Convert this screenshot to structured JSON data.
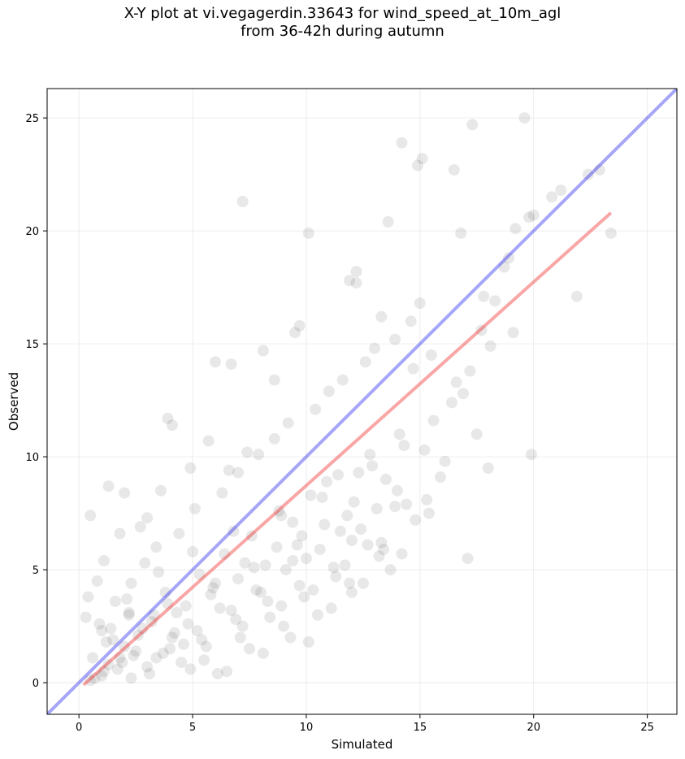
{
  "chart_data": {
    "type": "scatter",
    "title_lines": [
      "X-Y plot at vi.vegagerdin.33643 for wind_speed_at_10m_agl",
      "from 36-42h during autumn"
    ],
    "xlabel": "Simulated",
    "ylabel": "Observed",
    "xlim": [
      -1.4,
      26.3
    ],
    "ylim": [
      -1.4,
      26.3
    ],
    "xticks": [
      0,
      5,
      10,
      15,
      20,
      25
    ],
    "yticks": [
      0,
      5,
      10,
      15,
      20,
      25
    ],
    "grid": true,
    "point_color": "#000000",
    "point_alpha": 0.09,
    "series": [
      {
        "type": "line",
        "color": "#0000ee",
        "x": [
          -1.4,
          26.3
        ],
        "y": [
          -1.4,
          26.3
        ]
      },
      {
        "type": "line",
        "color": "#ee0000",
        "x": [
          0.2,
          23.4
        ],
        "y": [
          -0.1,
          20.8
        ]
      }
    ],
    "points": {
      "x": [
        19.6,
        17.3,
        14.2,
        15.1,
        14.9,
        16.5,
        7.2,
        22.9,
        23.4,
        21.9,
        20.0,
        19.9,
        10.1,
        12.2,
        13.3,
        11.9,
        17.1,
        20.8,
        19.2,
        18.7,
        16.8,
        13.6,
        9.5,
        9.7,
        6.0,
        6.7,
        3.9,
        4.1,
        1.3,
        0.5,
        2.0,
        1.8,
        3.6,
        8.6,
        8.1,
        15.3,
        15.9,
        12.2,
        18.0,
        17.5,
        11.9,
        10.1,
        13.9,
        13.4,
        12.0,
        9.4,
        16.6,
        17.8,
        15.5,
        18.3,
        19.1,
        14.7,
        4.9,
        5.7,
        7.4,
        6.6,
        3.0,
        2.7,
        1.1,
        0.8,
        0.4,
        0.3,
        1.6,
        2.3,
        2.9,
        3.4,
        4.4,
        5.1,
        6.3,
        7.0,
        7.9,
        8.6,
        9.2,
        10.4,
        11.0,
        11.6,
        12.6,
        13.0,
        13.9,
        14.6,
        15.0,
        0.6,
        1.0,
        1.4,
        1.9,
        2.2,
        2.5,
        3.2,
        3.8,
        4.2,
        4.7,
        5.3,
        5.8,
        6.4,
        7.0,
        7.6,
        8.2,
        8.9,
        9.6,
        10.2,
        10.8,
        11.4,
        12.1,
        12.8,
        13.5,
        14.1,
        1.2,
        1.7,
        2.4,
        3.1,
        4.0,
        4.8,
        5.5,
        6.2,
        7.1,
        7.8,
        8.4,
        9.1,
        9.9,
        10.6,
        11.3,
        12.4,
        13.2,
        14.4,
        0.9,
        1.5,
        2.1,
        2.8,
        3.5,
        4.3,
        5.0,
        5.9,
        6.8,
        7.7,
        8.8,
        9.8,
        10.9,
        11.8,
        12.9,
        14.0,
        15.2,
        16.1,
        0.7,
        1.3,
        2.0,
        2.6,
        3.3,
        3.9,
        4.6,
        5.2,
        6.0,
        6.7,
        7.3,
        8.0,
        8.7,
        9.4,
        10.0,
        10.7,
        11.5,
        12.3,
        13.1,
        14.3,
        15.6,
        16.4,
        17.2,
        18.1,
        0.5,
        1.1,
        1.8,
        2.3,
        3.0,
        3.7,
        4.5,
        5.4,
        6.1,
        6.9,
        7.5,
        8.3,
        9.0,
        9.7,
        10.5,
        11.2,
        12.0,
        12.7,
        13.7,
        14.8,
        1.0,
        2.2,
        3.4,
        4.1,
        4.9,
        5.6,
        6.5,
        7.2,
        8.1,
        8.9,
        9.3,
        10.3,
        11.1,
        11.7,
        12.5,
        13.3,
        14.2,
        15.4,
        16.9,
        17.7,
        18.9,
        19.8,
        21.2,
        22.4
      ],
      "y": [
        25.0,
        24.7,
        23.9,
        23.2,
        22.9,
        22.7,
        21.3,
        22.7,
        19.9,
        17.1,
        20.7,
        10.1,
        19.9,
        17.7,
        16.2,
        17.8,
        5.5,
        21.5,
        20.1,
        18.4,
        19.9,
        20.4,
        15.5,
        15.8,
        14.2,
        14.1,
        11.7,
        11.4,
        8.7,
        7.4,
        8.4,
        6.6,
        8.5,
        13.4,
        14.7,
        8.1,
        9.1,
        18.2,
        9.5,
        11.0,
        4.4,
        1.8,
        7.8,
        5.9,
        6.3,
        5.4,
        13.3,
        17.1,
        14.5,
        16.9,
        15.5,
        13.9,
        9.5,
        10.7,
        10.2,
        9.4,
        7.3,
        6.9,
        5.4,
        4.5,
        3.8,
        2.9,
        3.6,
        4.4,
        5.3,
        6.0,
        6.6,
        7.7,
        8.4,
        9.3,
        10.1,
        10.8,
        11.5,
        12.1,
        12.9,
        13.4,
        14.2,
        14.8,
        15.2,
        16.0,
        16.8,
        1.1,
        0.3,
        2.4,
        0.9,
        3.1,
        1.4,
        2.7,
        4.0,
        2.2,
        3.4,
        4.8,
        3.9,
        5.7,
        4.6,
        6.5,
        5.2,
        7.4,
        6.1,
        8.3,
        7.0,
        9.2,
        8.0,
        10.1,
        9.0,
        11.0,
        1.8,
        0.6,
        1.2,
        0.4,
        1.5,
        2.6,
        1.0,
        3.3,
        2.0,
        4.1,
        2.9,
        5.0,
        3.8,
        5.9,
        4.7,
        6.8,
        5.6,
        7.9,
        2.6,
        1.9,
        3.7,
        2.4,
        4.9,
        3.1,
        5.8,
        4.2,
        6.7,
        5.1,
        7.6,
        6.5,
        8.9,
        7.4,
        9.6,
        8.5,
        10.3,
        9.8,
        0.2,
        0.8,
        1.6,
        2.1,
        3.0,
        3.5,
        1.7,
        2.3,
        4.4,
        3.2,
        5.3,
        4.0,
        6.0,
        7.1,
        5.5,
        8.2,
        6.7,
        9.3,
        7.7,
        10.5,
        11.6,
        12.4,
        13.8,
        14.9,
        0.1,
        0.5,
        1.1,
        0.2,
        0.7,
        1.3,
        0.9,
        1.9,
        0.4,
        2.8,
        1.5,
        3.6,
        2.5,
        4.3,
        3.0,
        5.1,
        4.0,
        6.1,
        5.0,
        7.2,
        2.3,
        3.0,
        1.1,
        2.0,
        0.6,
        1.6,
        0.5,
        2.5,
        1.3,
        3.4,
        2.0,
        4.1,
        3.3,
        5.2,
        4.4,
        6.2,
        5.7,
        7.5,
        12.8,
        15.6,
        18.8,
        20.6,
        21.8,
        22.5
      ]
    }
  }
}
